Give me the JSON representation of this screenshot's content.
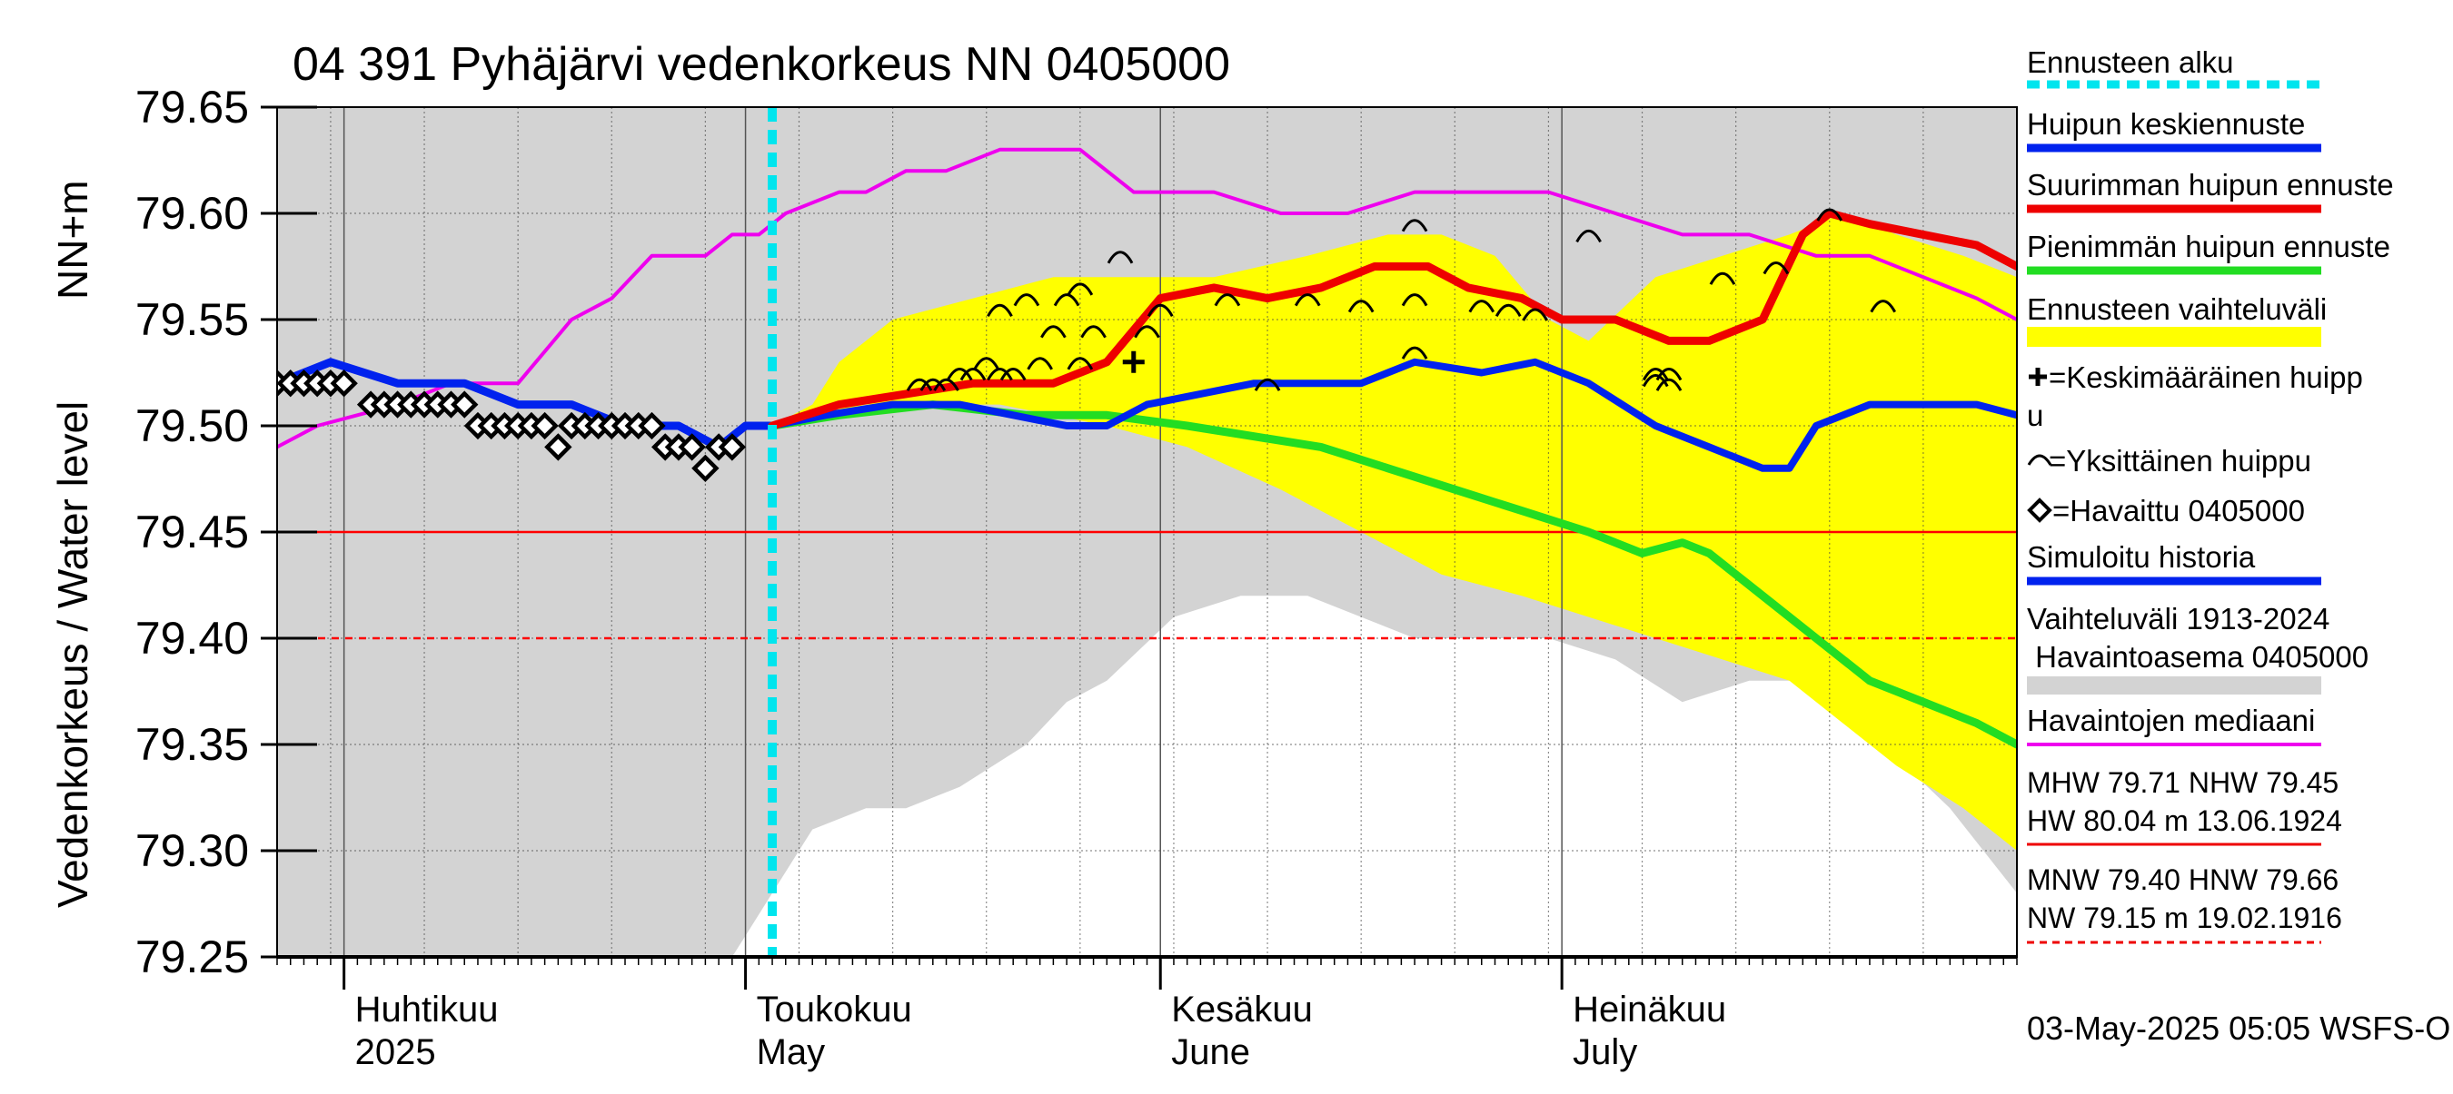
{
  "chart_data": {
    "type": "line",
    "title": "04 391 Pyhäjärvi vedenkorkeus NN 0405000",
    "ylabel_main": "Vedenkorkeus / Water level",
    "ylabel_unit": "NN+m",
    "ylim": [
      79.25,
      79.65
    ],
    "yticks": [
      "79.65",
      "79.60",
      "79.55",
      "79.50",
      "79.45",
      "79.40",
      "79.35",
      "79.30",
      "79.25"
    ],
    "x_start": "2025-03-27",
    "x_end": "2025-08-04",
    "month_labels": [
      {
        "date": "2025-04-01",
        "fi": "Huhtikuu",
        "en": "2025"
      },
      {
        "date": "2025-05-01",
        "fi": "Toukokuu",
        "en": "May"
      },
      {
        "date": "2025-06-01",
        "fi": "Kesäkuu",
        "en": "June"
      },
      {
        "date": "2025-07-01",
        "fi": "Heinäkuu",
        "en": "July"
      }
    ],
    "forecast_start": "2025-05-03",
    "footer": "03-May-2025 05:05 WSFS-O",
    "reference_lines": [
      {
        "name": "NHW",
        "value": 79.45,
        "color": "#ff0000",
        "style": "solid"
      },
      {
        "name": "MNW",
        "value": 79.4,
        "color": "#ff0000",
        "style": "dashed"
      }
    ],
    "legend": [
      {
        "label": "Ennusteen alku",
        "type": "dash",
        "color": "#00e5ee"
      },
      {
        "label": "Huipun keskiennuste",
        "type": "line",
        "color": "#0022ee"
      },
      {
        "label": "Suurimman huipun ennuste",
        "type": "line",
        "color": "#ee0000"
      },
      {
        "label": "Pienimmän huipun ennuste",
        "type": "line",
        "color": "#22dd22"
      },
      {
        "label": "Ennusteen vaihteluväli",
        "type": "band",
        "color": "#ffff00"
      },
      {
        "label": "=Keskimääräinen huippu",
        "type": "plus",
        "color": "#000000"
      },
      {
        "label": "=Yksittäinen huippu",
        "type": "arc",
        "color": "#000000"
      },
      {
        "label": "=Havaittu 0405000",
        "type": "diamond",
        "color": "#000000"
      },
      {
        "label": "Simuloitu historia",
        "type": "line",
        "color": "#0022ee"
      },
      {
        "label": "Vaihteluväli 1913-2024 Havaintoasema 0405000",
        "type": "band",
        "color": "#d3d3d3"
      },
      {
        "label": "Havaintojen mediaani",
        "type": "line",
        "color": "#ee00ee"
      },
      {
        "label": "MHW 79.71 NHW 79.45 HW 80.04 m 13.06.1924",
        "type": "line",
        "color": "#ee0000"
      },
      {
        "label": "MNW 79.40 HNW 79.66 NW 79.15 m 19.02.1916",
        "type": "dashed",
        "color": "#ee0000"
      }
    ],
    "series": [
      {
        "name": "Vaihteluväli 1913-2024 upper",
        "color": "#d3d3d3",
        "x": [
          "2025-03-27",
          "2025-05-01",
          "2025-05-15",
          "2025-06-01",
          "2025-06-20",
          "2025-07-01",
          "2025-07-10",
          "2025-07-20",
          "2025-08-04"
        ],
        "y": [
          79.65,
          79.65,
          79.65,
          79.65,
          79.65,
          79.65,
          79.65,
          79.65,
          79.65
        ]
      },
      {
        "name": "Vaihteluväli 1913-2024 lower",
        "color": "#d3d3d3",
        "x": [
          "2025-03-27",
          "2025-04-30",
          "2025-05-01",
          "2025-05-03",
          "2025-05-06",
          "2025-05-10",
          "2025-05-13",
          "2025-05-17",
          "2025-05-22",
          "2025-05-25",
          "2025-05-28",
          "2025-06-02",
          "2025-06-07",
          "2025-06-12",
          "2025-06-20",
          "2025-06-30",
          "2025-07-05",
          "2025-07-10",
          "2025-07-15",
          "2025-07-20",
          "2025-07-25",
          "2025-07-30",
          "2025-08-04"
        ],
        "y": [
          79.25,
          79.25,
          79.26,
          79.28,
          79.31,
          79.32,
          79.32,
          79.33,
          79.35,
          79.37,
          79.38,
          79.41,
          79.42,
          79.42,
          79.4,
          79.4,
          79.39,
          79.37,
          79.38,
          79.38,
          79.35,
          79.32,
          79.28
        ]
      },
      {
        "name": "Ennusteen vaihteluväli upper",
        "color": "#ffff00",
        "x": [
          "2025-05-03",
          "2025-05-06",
          "2025-05-08",
          "2025-05-12",
          "2025-05-18",
          "2025-05-24",
          "2025-05-30",
          "2025-06-05",
          "2025-06-12",
          "2025-06-18",
          "2025-06-22",
          "2025-06-26",
          "2025-06-30",
          "2025-07-03",
          "2025-07-08",
          "2025-07-13",
          "2025-07-18",
          "2025-07-22",
          "2025-07-26",
          "2025-07-31",
          "2025-08-04"
        ],
        "y": [
          79.5,
          79.51,
          79.53,
          79.55,
          79.56,
          79.57,
          79.57,
          79.57,
          79.58,
          79.59,
          79.59,
          79.58,
          79.55,
          79.54,
          79.57,
          79.58,
          79.59,
          79.6,
          79.59,
          79.58,
          79.57
        ]
      },
      {
        "name": "Ennusteen vaihteluväli lower",
        "color": "#ffff00",
        "x": [
          "2025-05-03",
          "2025-05-10",
          "2025-05-20",
          "2025-05-28",
          "2025-06-03",
          "2025-06-10",
          "2025-06-16",
          "2025-06-22",
          "2025-06-28",
          "2025-07-03",
          "2025-07-08",
          "2025-07-13",
          "2025-07-18",
          "2025-07-22",
          "2025-07-26",
          "2025-07-31",
          "2025-08-04"
        ],
        "y": [
          79.5,
          79.51,
          79.51,
          79.5,
          79.49,
          79.47,
          79.45,
          79.43,
          79.42,
          79.41,
          79.4,
          79.39,
          79.38,
          79.36,
          79.34,
          79.32,
          79.3
        ]
      },
      {
        "name": "Havaintojen mediaani",
        "color": "#ee00ee",
        "x": [
          "2025-03-27",
          "2025-03-30",
          "2025-04-05",
          "2025-04-09",
          "2025-04-14",
          "2025-04-18",
          "2025-04-21",
          "2025-04-24",
          "2025-04-28",
          "2025-04-30",
          "2025-05-02",
          "2025-05-04",
          "2025-05-08",
          "2025-05-10",
          "2025-05-13",
          "2025-05-16",
          "2025-05-20",
          "2025-05-26",
          "2025-05-30",
          "2025-06-05",
          "2025-06-10",
          "2025-06-15",
          "2025-06-20",
          "2025-06-25",
          "2025-06-30",
          "2025-07-05",
          "2025-07-10",
          "2025-07-15",
          "2025-07-20",
          "2025-07-24",
          "2025-07-28",
          "2025-08-01",
          "2025-08-04"
        ],
        "y": [
          79.49,
          79.5,
          79.51,
          79.52,
          79.52,
          79.55,
          79.56,
          79.58,
          79.58,
          79.59,
          79.59,
          79.6,
          79.61,
          79.61,
          79.62,
          79.62,
          79.63,
          79.63,
          79.61,
          79.61,
          79.6,
          79.6,
          79.61,
          79.61,
          79.61,
          79.6,
          79.59,
          79.59,
          79.58,
          79.58,
          79.57,
          79.56,
          79.55
        ]
      },
      {
        "name": "Simuloitu historia",
        "color": "#0022ee",
        "x": [
          "2025-03-27",
          "2025-03-31",
          "2025-04-05",
          "2025-04-10",
          "2025-04-14",
          "2025-04-18",
          "2025-04-22",
          "2025-04-26",
          "2025-04-29",
          "2025-05-01",
          "2025-05-03"
        ],
        "y": [
          79.52,
          79.53,
          79.52,
          79.52,
          79.51,
          79.51,
          79.5,
          79.5,
          79.49,
          79.5,
          79.5
        ]
      },
      {
        "name": "Huipun keskiennuste",
        "color": "#0022ee",
        "x": [
          "2025-05-03",
          "2025-05-07",
          "2025-05-12",
          "2025-05-17",
          "2025-05-21",
          "2025-05-25",
          "2025-05-28",
          "2025-05-31",
          "2025-06-04",
          "2025-06-08",
          "2025-06-12",
          "2025-06-16",
          "2025-06-20",
          "2025-06-25",
          "2025-06-29",
          "2025-07-03",
          "2025-07-08",
          "2025-07-12",
          "2025-07-16",
          "2025-07-18",
          "2025-07-20",
          "2025-07-24",
          "2025-07-28",
          "2025-08-01",
          "2025-08-04"
        ],
        "y": [
          79.5,
          79.505,
          79.51,
          79.51,
          79.505,
          79.5,
          79.5,
          79.51,
          79.515,
          79.52,
          79.52,
          79.52,
          79.53,
          79.525,
          79.53,
          79.52,
          79.5,
          79.49,
          79.48,
          79.48,
          79.5,
          79.51,
          79.51,
          79.51,
          79.505
        ]
      },
      {
        "name": "Suurimman huipun ennuste",
        "color": "#ee0000",
        "x": [
          "2025-05-03",
          "2025-05-08",
          "2025-05-13",
          "2025-05-18",
          "2025-05-24",
          "2025-05-28",
          "2025-06-01",
          "2025-06-05",
          "2025-06-09",
          "2025-06-13",
          "2025-06-17",
          "2025-06-21",
          "2025-06-24",
          "2025-06-28",
          "2025-07-01",
          "2025-07-05",
          "2025-07-09",
          "2025-07-12",
          "2025-07-14",
          "2025-07-16",
          "2025-07-19",
          "2025-07-21",
          "2025-07-24",
          "2025-07-28",
          "2025-08-01",
          "2025-08-04"
        ],
        "y": [
          79.5,
          79.51,
          79.515,
          79.52,
          79.52,
          79.53,
          79.56,
          79.565,
          79.56,
          79.565,
          79.575,
          79.575,
          79.565,
          79.56,
          79.55,
          79.55,
          79.54,
          79.54,
          79.545,
          79.55,
          79.59,
          79.6,
          79.595,
          79.59,
          79.585,
          79.575
        ]
      },
      {
        "name": "Pienimmän huipun ennuste",
        "color": "#22dd22",
        "x": [
          "2025-05-03",
          "2025-05-08",
          "2025-05-15",
          "2025-05-22",
          "2025-05-28",
          "2025-06-03",
          "2025-06-08",
          "2025-06-13",
          "2025-06-18",
          "2025-06-23",
          "2025-06-28",
          "2025-07-03",
          "2025-07-07",
          "2025-07-10",
          "2025-07-12",
          "2025-07-16",
          "2025-07-20",
          "2025-07-24",
          "2025-07-28",
          "2025-08-01",
          "2025-08-04"
        ],
        "y": [
          79.5,
          79.505,
          79.51,
          79.505,
          79.505,
          79.5,
          79.495,
          79.49,
          79.48,
          79.47,
          79.46,
          79.45,
          79.44,
          79.445,
          79.44,
          79.42,
          79.4,
          79.38,
          79.37,
          79.36,
          79.35
        ]
      },
      {
        "name": "Havaittu 0405000",
        "color": "#000000",
        "x": [
          "2025-03-27",
          "2025-03-28",
          "2025-03-29",
          "2025-03-30",
          "2025-03-31",
          "2025-04-01",
          "2025-04-03",
          "2025-04-04",
          "2025-04-05",
          "2025-04-06",
          "2025-04-07",
          "2025-04-08",
          "2025-04-09",
          "2025-04-10",
          "2025-04-11",
          "2025-04-12",
          "2025-04-13",
          "2025-04-14",
          "2025-04-15",
          "2025-04-16",
          "2025-04-17",
          "2025-04-18",
          "2025-04-19",
          "2025-04-20",
          "2025-04-21",
          "2025-04-22",
          "2025-04-23",
          "2025-04-24",
          "2025-04-25",
          "2025-04-26",
          "2025-04-27",
          "2025-04-28",
          "2025-04-29",
          "2025-04-30"
        ],
        "y": [
          79.52,
          79.52,
          79.52,
          79.52,
          79.52,
          79.52,
          79.51,
          79.51,
          79.51,
          79.51,
          79.51,
          79.51,
          79.51,
          79.51,
          79.5,
          79.5,
          79.5,
          79.5,
          79.5,
          79.5,
          79.49,
          79.5,
          79.5,
          79.5,
          79.5,
          79.5,
          79.5,
          79.5,
          79.49,
          79.49,
          79.49,
          79.48,
          79.49,
          79.49
        ]
      },
      {
        "name": "Yksittäinen huippu",
        "color": "#000000",
        "x": [
          "2025-05-14",
          "2025-05-15",
          "2025-05-16",
          "2025-05-17",
          "2025-05-18",
          "2025-05-19",
          "2025-05-20",
          "2025-05-20",
          "2025-05-21",
          "2025-05-22",
          "2025-05-23",
          "2025-05-24",
          "2025-05-25",
          "2025-05-26",
          "2025-05-26",
          "2025-05-27",
          "2025-05-29",
          "2025-05-31",
          "2025-06-01",
          "2025-06-06",
          "2025-06-09",
          "2025-06-12",
          "2025-06-16",
          "2025-06-20",
          "2025-06-20",
          "2025-06-20",
          "2025-06-25",
          "2025-06-27",
          "2025-06-29",
          "2025-07-03",
          "2025-07-08",
          "2025-07-08",
          "2025-07-09",
          "2025-07-09",
          "2025-07-13",
          "2025-07-17",
          "2025-07-21",
          "2025-07-25"
        ],
        "y": [
          79.52,
          79.52,
          79.52,
          79.525,
          79.525,
          79.53,
          79.555,
          79.525,
          79.525,
          79.56,
          79.53,
          79.545,
          79.56,
          79.565,
          79.53,
          79.545,
          79.58,
          79.545,
          79.555,
          79.56,
          79.52,
          79.56,
          79.557,
          79.56,
          79.535,
          79.595,
          79.557,
          79.555,
          79.553,
          79.59,
          79.525,
          79.522,
          79.52,
          79.525,
          79.57,
          79.575,
          79.6,
          79.557
        ]
      },
      {
        "name": "Keskimääräinen huippu",
        "color": "#000000",
        "x": [
          "2025-05-30"
        ],
        "y": [
          79.53
        ]
      }
    ]
  }
}
